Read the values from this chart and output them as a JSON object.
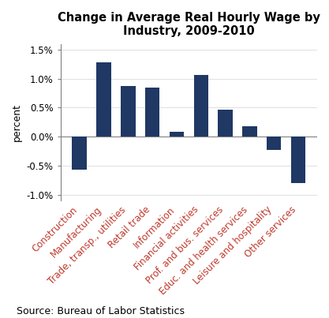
{
  "title": "Change in Average Real Hourly Wage by\nIndustry, 2009-2010",
  "categories": [
    "Construction",
    "Manufacturing",
    "Trade, transp., utilities",
    "Retail trade",
    "Information",
    "Financial activities",
    "Prof. and bus. services",
    "Educ. and health services",
    "Leisure and hospitality",
    "Other services"
  ],
  "values": [
    -0.57,
    1.28,
    0.88,
    0.85,
    0.08,
    1.06,
    0.46,
    0.18,
    -0.22,
    -0.8
  ],
  "bar_color": "#1F3864",
  "ylabel": "percent",
  "ylim": [
    -1.1,
    1.6
  ],
  "yticks": [
    -1.0,
    -0.5,
    0.0,
    0.5,
    1.0,
    1.5
  ],
  "ytick_labels": [
    "-1.0%",
    "-0.5%",
    "0.0%",
    "0.5%",
    "1.0%",
    "1.5%"
  ],
  "source": "Source: Bureau of Labor Statistics",
  "title_fontsize": 10.5,
  "label_fontsize": 9,
  "tick_fontsize": 8.5,
  "source_fontsize": 9,
  "xlabel_color": "#C0392B",
  "bar_width": 0.6
}
